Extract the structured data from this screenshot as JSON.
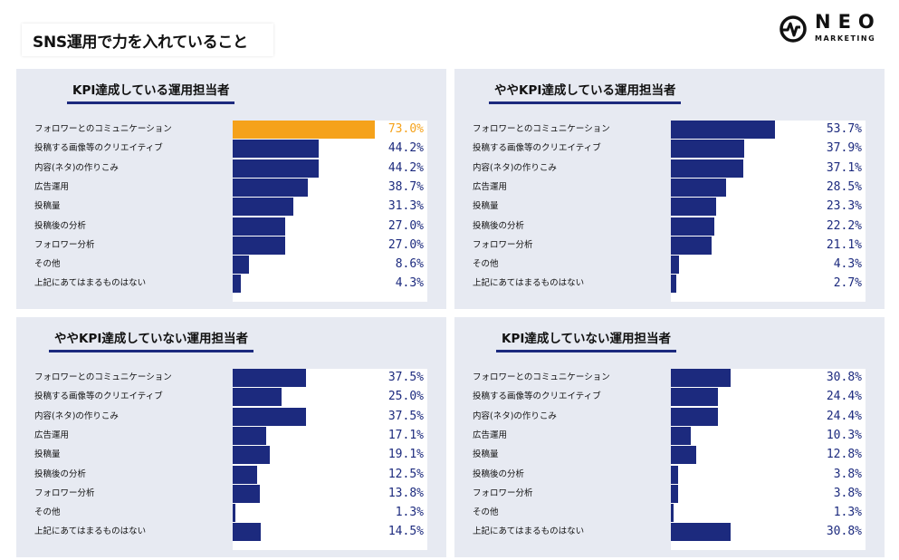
{
  "page": {
    "title": "SNS運用で力を入れていること",
    "logo": {
      "name": "NEO",
      "sub": "MARKETING",
      "icon": "pulse-line-icon"
    }
  },
  "colors": {
    "bar": "#1c2a7e",
    "highlight": "#f5a21b",
    "panel": "#e7eaf2"
  },
  "categories": [
    "フォロワーとのコミュニケーション",
    "投稿する画像等のクリエイティブ",
    "内容(ネタ)の作りこみ",
    "広告運用",
    "投稿量",
    "投稿後の分析",
    "フォロワー分析",
    "その他",
    "上記にあてはまるものはない"
  ],
  "chart_data": [
    {
      "type": "bar",
      "title": "KPI達成している運用担当者",
      "categories": [
        "フォロワーとのコミュニケーション",
        "投稿する画像等のクリエイティブ",
        "内容(ネタ)の作りこみ",
        "広告運用",
        "投稿量",
        "投稿後の分析",
        "フォロワー分析",
        "その他",
        "上記にあてはまるものはない"
      ],
      "values": [
        73.0,
        44.2,
        44.2,
        38.7,
        31.3,
        27.0,
        27.0,
        8.6,
        4.3
      ],
      "labels": [
        "73.0%",
        "44.2%",
        "44.2%",
        "38.7%",
        "31.3%",
        "27.0%",
        "27.0%",
        "8.6%",
        "4.3%"
      ],
      "highlight_index": 0
    },
    {
      "type": "bar",
      "title": "ややKPI達成している運用担当者",
      "categories": [
        "フォロワーとのコミュニケーション",
        "投稿する画像等のクリエイティブ",
        "内容(ネタ)の作りこみ",
        "広告運用",
        "投稿量",
        "投稿後の分析",
        "フォロワー分析",
        "その他",
        "上記にあてはまるものはない"
      ],
      "values": [
        53.7,
        37.9,
        37.1,
        28.5,
        23.3,
        22.2,
        21.1,
        4.3,
        2.7
      ],
      "labels": [
        "53.7%",
        "37.9%",
        "37.1%",
        "28.5%",
        "23.3%",
        "22.2%",
        "21.1%",
        "4.3%",
        "2.7%"
      ],
      "highlight_index": -1
    },
    {
      "type": "bar",
      "title": "ややKPI達成していない運用担当者",
      "categories": [
        "フォロワーとのコミュニケーション",
        "投稿する画像等のクリエイティブ",
        "内容(ネタ)の作りこみ",
        "広告運用",
        "投稿量",
        "投稿後の分析",
        "フォロワー分析",
        "その他",
        "上記にあてはまるものはない"
      ],
      "values": [
        37.5,
        25.0,
        37.5,
        17.1,
        19.1,
        12.5,
        13.8,
        1.3,
        14.5
      ],
      "labels": [
        "37.5%",
        "25.0%",
        "37.5%",
        "17.1%",
        "19.1%",
        "12.5%",
        "13.8%",
        "1.3%",
        "14.5%"
      ],
      "highlight_index": -1
    },
    {
      "type": "bar",
      "title": "KPI達成していない運用担当者",
      "categories": [
        "フォロワーとのコミュニケーション",
        "投稿する画像等のクリエイティブ",
        "内容(ネタ)の作りこみ",
        "広告運用",
        "投稿量",
        "投稿後の分析",
        "フォロワー分析",
        "その他",
        "上記にあてはまるものはない"
      ],
      "values": [
        30.8,
        24.4,
        24.4,
        10.3,
        12.8,
        3.8,
        3.8,
        1.3,
        30.8
      ],
      "labels": [
        "30.8%",
        "24.4%",
        "24.4%",
        "10.3%",
        "12.8%",
        "3.8%",
        "3.8%",
        "1.3%",
        "30.8%"
      ],
      "highlight_index": -1
    }
  ]
}
